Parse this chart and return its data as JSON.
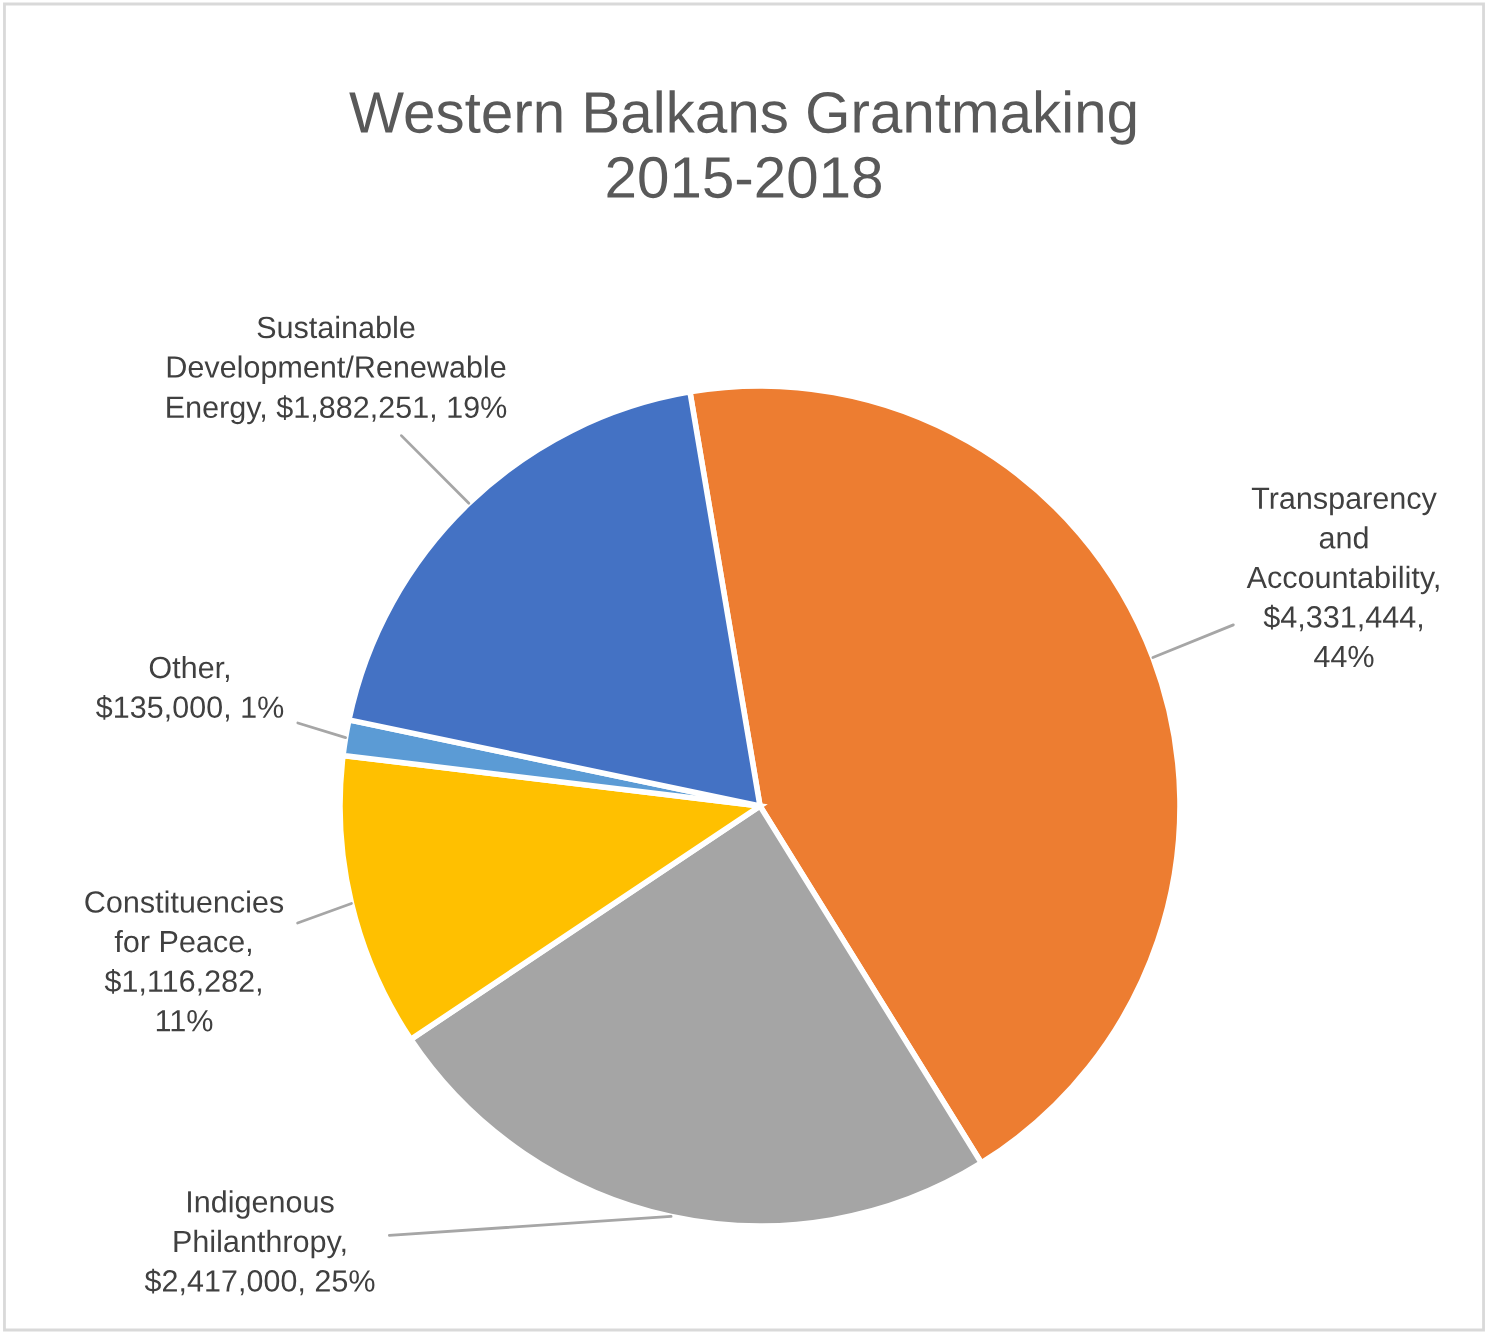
{
  "chart_data": {
    "type": "pie",
    "title": "Western Balkans Grantmaking\n2015-2018",
    "categories": [
      "Transparency and Accountability",
      "Indigenous Philanthropy",
      "Constituencies for Peace",
      "Other",
      "Sustainable Development/Renewable Energy"
    ],
    "values": [
      4331444,
      2417000,
      1116282,
      135000,
      1882251
    ],
    "colors": [
      "#ed7d31",
      "#a5a5a5",
      "#ffc000",
      "#5b9bd5",
      "#4472c4"
    ],
    "value_labels": [
      ", $4,331,444, 44%",
      ", $2,417,000, 25%",
      ", $1,116,282, 11%",
      ", $135,000, 1%",
      ", $1,882,251, 19%"
    ],
    "legend": false
  }
}
